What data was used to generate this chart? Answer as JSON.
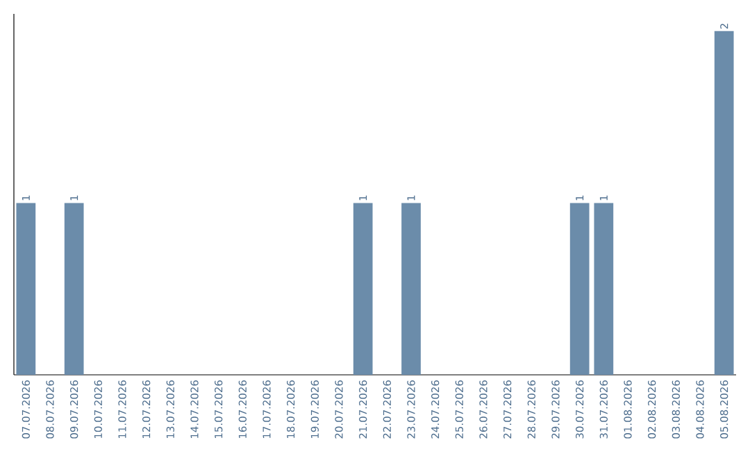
{
  "chart_data": {
    "type": "bar",
    "categories": [
      "07.07.2026",
      "08.07.2026",
      "09.07.2026",
      "10.07.2026",
      "11.07.2026",
      "12.07.2026",
      "13.07.2026",
      "14.07.2026",
      "15.07.2026",
      "16.07.2026",
      "17.07.2026",
      "18.07.2026",
      "19.07.2026",
      "20.07.2026",
      "21.07.2026",
      "22.07.2026",
      "23.07.2026",
      "24.07.2026",
      "25.07.2026",
      "26.07.2026",
      "27.07.2026",
      "28.07.2026",
      "29.07.2026",
      "30.07.2026",
      "31.07.2026",
      "01.08.2026",
      "02.08.2026",
      "03.08.2026",
      "04.08.2026",
      "05.08.2026"
    ],
    "values": [
      1,
      0,
      1,
      0,
      0,
      0,
      0,
      0,
      0,
      0,
      0,
      0,
      0,
      0,
      1,
      0,
      1,
      0,
      0,
      0,
      0,
      0,
      0,
      1,
      1,
      0,
      0,
      0,
      0,
      2
    ],
    "value_labels": [
      "1",
      null,
      "1",
      null,
      null,
      null,
      null,
      null,
      null,
      null,
      null,
      null,
      null,
      null,
      "1",
      null,
      "1",
      null,
      null,
      null,
      null,
      null,
      null,
      "1",
      "1",
      null,
      null,
      null,
      null,
      "2"
    ],
    "color": "#6b8caa",
    "tick_labels": "x"
  }
}
